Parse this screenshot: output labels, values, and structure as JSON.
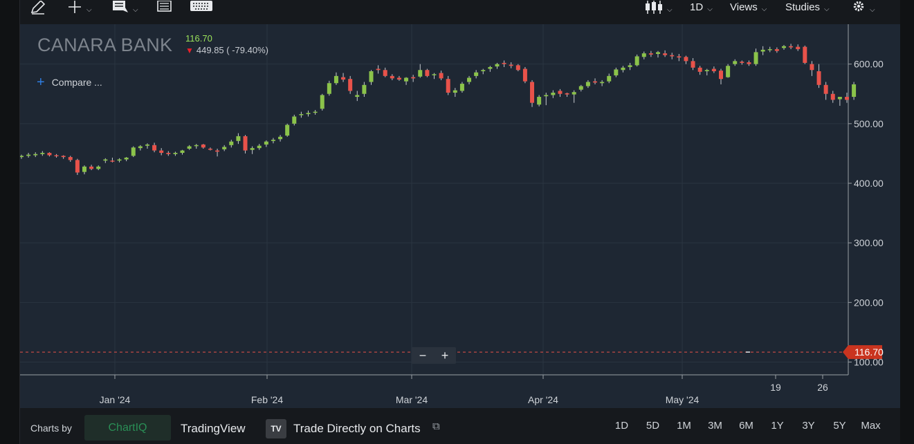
{
  "toolbar": {
    "chart_type_icon": "candlestick-icon",
    "interval_label": "1D",
    "views_label": "Views",
    "studies_label": "Studies",
    "settings_icon": "gear-icon",
    "draw_icon": "pencil-icon",
    "crosshair_icon": "crosshair-icon",
    "info_icon": "info-panel-icon",
    "table_icon": "data-table-icon",
    "keyboard_icon": "keyboard-icon"
  },
  "symbol": {
    "name": "CANARA BANK",
    "last": "116.70",
    "change": "449.85 ( -79.40%)",
    "change_icon": "down-arrow-icon"
  },
  "compare_label": "Compare ...",
  "current_price_tag": "116.70",
  "zoom": {
    "minus": "−",
    "plus": "+"
  },
  "footer": {
    "charts_by": "Charts by",
    "chartiq": "ChartIQ",
    "tradingview": "TradingView",
    "trade_directly": "Trade Directly on Charts",
    "periods": [
      "1D",
      "5D",
      "1M",
      "3M",
      "6M",
      "1Y",
      "3Y",
      "5Y",
      "Max"
    ]
  },
  "colors": {
    "background": "#1e2733",
    "up": "#8bc34a",
    "down": "#e8524a",
    "price_line": "#e8524a",
    "price_tag": "#c9341f"
  },
  "chart_data": {
    "type": "candlestick",
    "title": "CANARA BANK",
    "ylim": [
      85,
      660
    ],
    "y_ticks": [
      100,
      200,
      300,
      400,
      500,
      600
    ],
    "y_tick_labels": [
      "100.00",
      "200.00",
      "300.00",
      "400.00",
      "500.00",
      "600.00"
    ],
    "x_tick_labels": [
      "Jan '24",
      "Feb '24",
      "Mar '24",
      "Apr '24",
      "May '24",
      "19",
      "26"
    ],
    "current_price": 116.7,
    "grid": true,
    "series": [
      {
        "values": [
          [
            444,
            448,
            441,
            446
          ],
          [
            446,
            451,
            443,
            448
          ],
          [
            447,
            452,
            444,
            449
          ],
          [
            449,
            454,
            446,
            451
          ],
          [
            451,
            452,
            445,
            447
          ],
          [
            447,
            449,
            443,
            446
          ],
          [
            446,
            447,
            441,
            444
          ],
          [
            444,
            446,
            436,
            439
          ],
          [
            439,
            441,
            414,
            418
          ],
          [
            419,
            430,
            415,
            428
          ],
          [
            428,
            431,
            422,
            424
          ],
          [
            424,
            430,
            422,
            428
          ],
          [
            438,
            442,
            434,
            440
          ],
          [
            438,
            443,
            435,
            437
          ],
          [
            438,
            442,
            435,
            440
          ],
          [
            440,
            444,
            437,
            443
          ],
          [
            446,
            462,
            444,
            460
          ],
          [
            459,
            464,
            455,
            462
          ],
          [
            463,
            467,
            458,
            465
          ],
          [
            464,
            468,
            452,
            455
          ],
          [
            455,
            459,
            447,
            451
          ],
          [
            451,
            454,
            446,
            449
          ],
          [
            449,
            453,
            446,
            451
          ],
          [
            451,
            456,
            448,
            455
          ],
          [
            458,
            464,
            456,
            462
          ],
          [
            463,
            466,
            458,
            464
          ],
          [
            465,
            466,
            458,
            460
          ],
          [
            458,
            460,
            455,
            457
          ],
          [
            455,
            458,
            445,
            453
          ],
          [
            457,
            464,
            454,
            461
          ],
          [
            464,
            473,
            460,
            470
          ],
          [
            471,
            484,
            466,
            479
          ],
          [
            479,
            481,
            450,
            455
          ],
          [
            456,
            462,
            449,
            459
          ],
          [
            459,
            466,
            456,
            463
          ],
          [
            465,
            472,
            461,
            470
          ],
          [
            471,
            476,
            467,
            473
          ],
          [
            474,
            481,
            470,
            478
          ],
          [
            480,
            500,
            478,
            498
          ],
          [
            500,
            515,
            497,
            512
          ],
          [
            515,
            520,
            510,
            516
          ],
          [
            516,
            522,
            512,
            518
          ],
          [
            519,
            523,
            515,
            520
          ],
          [
            525,
            550,
            522,
            548
          ],
          [
            550,
            572,
            547,
            568
          ],
          [
            568,
            586,
            565,
            580
          ],
          [
            578,
            585,
            570,
            574
          ],
          [
            575,
            580,
            550,
            555
          ],
          [
            545,
            555,
            538,
            548
          ],
          [
            550,
            570,
            545,
            565
          ],
          [
            570,
            590,
            565,
            588
          ],
          [
            592,
            598,
            584,
            590
          ],
          [
            590,
            594,
            578,
            580
          ],
          [
            580,
            583,
            573,
            576
          ],
          [
            577,
            580,
            572,
            574
          ],
          [
            571,
            578,
            565,
            577
          ],
          [
            578,
            582,
            570,
            576
          ],
          [
            579,
            600,
            577,
            590
          ],
          [
            590,
            592,
            578,
            580
          ],
          [
            582,
            585,
            575,
            583
          ],
          [
            585,
            589,
            573,
            576
          ],
          [
            575,
            580,
            548,
            552
          ],
          [
            552,
            560,
            545,
            556
          ],
          [
            555,
            570,
            552,
            567
          ],
          [
            570,
            580,
            566,
            577
          ],
          [
            580,
            590,
            576,
            586
          ],
          [
            588,
            592,
            583,
            590
          ],
          [
            592,
            597,
            587,
            595
          ],
          [
            596,
            602,
            592,
            600
          ],
          [
            602,
            606,
            595,
            600
          ],
          [
            599,
            603,
            593,
            597
          ],
          [
            598,
            600,
            588,
            590
          ],
          [
            592,
            595,
            568,
            571
          ],
          [
            570,
            573,
            528,
            535
          ],
          [
            532,
            548,
            529,
            545
          ],
          [
            546,
            552,
            531,
            548
          ],
          [
            548,
            556,
            543,
            552
          ],
          [
            555,
            558,
            545,
            550
          ],
          [
            551,
            552,
            545,
            549
          ],
          [
            549,
            556,
            535,
            553
          ],
          [
            557,
            565,
            554,
            563
          ],
          [
            563,
            573,
            560,
            570
          ],
          [
            571,
            576,
            566,
            569
          ],
          [
            568,
            573,
            563,
            570
          ],
          [
            571,
            584,
            568,
            580
          ],
          [
            581,
            594,
            578,
            591
          ],
          [
            590,
            597,
            586,
            594
          ],
          [
            595,
            602,
            590,
            598
          ],
          [
            598,
            616,
            596,
            613
          ],
          [
            612,
            621,
            608,
            618
          ],
          [
            618,
            622,
            612,
            616
          ],
          [
            617,
            622,
            611,
            620
          ],
          [
            618,
            623,
            612,
            615
          ],
          [
            615,
            619,
            608,
            613
          ],
          [
            613,
            617,
            605,
            611
          ],
          [
            612,
            614,
            600,
            605
          ],
          [
            605,
            610,
            590,
            594
          ],
          [
            594,
            597,
            582,
            587
          ],
          [
            588,
            592,
            581,
            590
          ],
          [
            592,
            596,
            585,
            588
          ],
          [
            589,
            592,
            566,
            575
          ],
          [
            578,
            600,
            577,
            597
          ],
          [
            600,
            608,
            597,
            605
          ],
          [
            604,
            606,
            599,
            602
          ],
          [
            603,
            606,
            597,
            600
          ],
          [
            600,
            626,
            597,
            620
          ],
          [
            621,
            630,
            615,
            624
          ],
          [
            624,
            629,
            620,
            625
          ],
          [
            625,
            628,
            619,
            622
          ],
          [
            627,
            632,
            624,
            630
          ],
          [
            630,
            634,
            625,
            628
          ],
          [
            629,
            633,
            622,
            625
          ],
          [
            629,
            631,
            600,
            602
          ],
          [
            600,
            605,
            580,
            590
          ],
          [
            588,
            600,
            560,
            565
          ],
          [
            565,
            570,
            540,
            550
          ],
          [
            550,
            555,
            535,
            540
          ],
          [
            541,
            545,
            530,
            545
          ],
          [
            545,
            552,
            535,
            540
          ],
          [
            545,
            570,
            540,
            566
          ]
        ]
      }
    ]
  }
}
